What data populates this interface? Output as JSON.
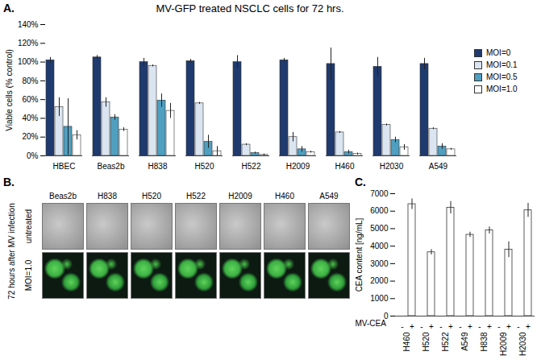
{
  "chart_data": [
    {
      "type": "bar",
      "annotations": [
        "A."
      ],
      "title": "MV-GFP treated NSCLC cells for 72 hrs.",
      "y_label": "Viable cells (% control)",
      "categories": [
        "HBEC",
        "Beas2b",
        "H838",
        "H520",
        "H522",
        "H2009",
        "H460",
        "H2030",
        "A549"
      ],
      "series": [
        {
          "name": "MOI=0",
          "color": "#1f3a6e",
          "values": [
            102,
            105,
            100,
            101,
            100,
            102,
            98,
            95,
            98
          ],
          "errors": [
            3,
            2,
            4,
            2,
            7,
            2,
            17,
            10,
            6
          ]
        },
        {
          "name": "MOI=0.1",
          "color": "#dbe5f1",
          "values": [
            52,
            57,
            96,
            56,
            12,
            20,
            25,
            33,
            29
          ],
          "errors": [
            10,
            5,
            1,
            1,
            1,
            5,
            1,
            1,
            1
          ]
        },
        {
          "name": "MOI=0.5",
          "color": "#4f9fc0",
          "values": [
            31,
            41,
            59,
            15,
            3,
            7,
            4,
            17,
            10
          ],
          "errors": [
            30,
            3,
            7,
            7,
            1,
            3,
            2,
            3,
            3
          ]
        },
        {
          "name": "MOI=1.0",
          "color": "#ffffff",
          "values": [
            22,
            28,
            48,
            5,
            1,
            4,
            2,
            9,
            7
          ],
          "errors": [
            5,
            2,
            8,
            5,
            1,
            1,
            1,
            3,
            1
          ]
        }
      ],
      "ylim": [
        0,
        140
      ],
      "yticks": [
        {
          "value": 0,
          "label": "0%"
        },
        {
          "value": 20,
          "label": "20%"
        },
        {
          "value": 40,
          "label": "40%"
        },
        {
          "value": 60,
          "label": "60%"
        },
        {
          "value": 80,
          "label": "80%"
        },
        {
          "value": 100,
          "label": "100%"
        },
        {
          "value": 120,
          "label": "120%"
        },
        {
          "value": 140,
          "label": "140%"
        }
      ],
      "grid": false,
      "legend": "right"
    },
    {
      "type": "bar",
      "annotations": [
        "C."
      ],
      "y_label": "CEA content [ng/mL]",
      "x_label": "MV-CEA",
      "categories": [
        "-",
        "+",
        "-",
        "+",
        "-",
        "+",
        "-",
        "+",
        "-",
        "+",
        "-",
        "+",
        "-",
        "+"
      ],
      "groups": [
        "H460",
        "H520",
        "H522",
        "A549",
        "H838",
        "H2009",
        "H2030"
      ],
      "values": [
        0,
        6400,
        0,
        3650,
        0,
        6200,
        0,
        4650,
        0,
        4900,
        0,
        3800,
        0,
        6050
      ],
      "errors": [
        null,
        300,
        null,
        150,
        null,
        350,
        null,
        150,
        null,
        200,
        null,
        450,
        null,
        400
      ],
      "color": "#ffffff",
      "ylim": [
        0,
        7000
      ],
      "yticks": [
        0,
        1000,
        2000,
        3000,
        4000,
        5000,
        6000,
        7000
      ],
      "grid": false
    }
  ],
  "image_panel": {
    "label": "B.",
    "side_label": "72 hours after MV infection",
    "rows": [
      "untreated",
      "MOI=1.0"
    ],
    "columns": [
      "Beas2b",
      "H838",
      "H520",
      "H522",
      "H2009",
      "H460",
      "A549"
    ]
  }
}
